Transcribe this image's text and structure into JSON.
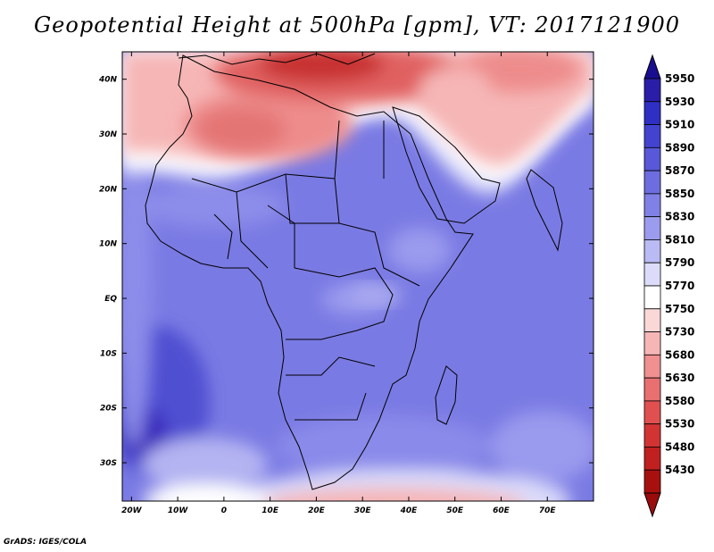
{
  "title": "Geopotential Height at 500hPa [gpm], VT: 2017121900",
  "credit": "GrADS: IGES/COLA",
  "map": {
    "lon_range": [
      -22,
      80
    ],
    "lat_range": [
      -37,
      45
    ],
    "lon_ticks": [
      "20W",
      "10W",
      "0",
      "10E",
      "20E",
      "30E",
      "40E",
      "50E",
      "60E",
      "70E"
    ],
    "lat_ticks": [
      "40N",
      "30N",
      "20N",
      "10N",
      "EQ",
      "10S",
      "20S",
      "30S"
    ]
  },
  "colorbar": {
    "labels": [
      "5950",
      "5930",
      "5910",
      "5890",
      "5870",
      "5850",
      "5830",
      "5810",
      "5790",
      "5770",
      "5750",
      "5730",
      "5680",
      "5630",
      "5580",
      "5530",
      "5480",
      "5430"
    ],
    "colors": [
      "#2a1ea8",
      "#2f2fc4",
      "#4343cf",
      "#5858d8",
      "#6d6de0",
      "#8080e6",
      "#9c9cee",
      "#babaf4",
      "#dcdcfa",
      "#ffffff",
      "#fbd8d8",
      "#f6b6b6",
      "#f09090",
      "#e87070",
      "#e05050",
      "#d23434",
      "#c02020",
      "#a81010"
    ],
    "top_color": "#1a0e90",
    "bottom_color": "#9a0c0c"
  }
}
